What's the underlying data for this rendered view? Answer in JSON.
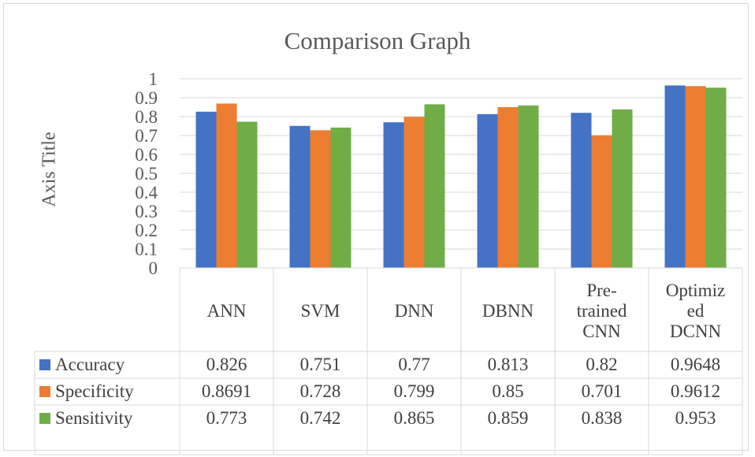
{
  "colors": {
    "accuracy": "#4472C4",
    "specificity": "#ED7D31",
    "sensitivity": "#70AD47",
    "grid": "#d9d9d9",
    "text": "#595959"
  },
  "chart_data": {
    "type": "bar",
    "title": "Comparison Graph",
    "ylabel": "Axis Title",
    "xlabel": "",
    "ylim": [
      0,
      1
    ],
    "yticks": [
      "0",
      "0.1",
      "0.2",
      "0.3",
      "0.4",
      "0.5",
      "0.6",
      "0.7",
      "0.8",
      "0.9",
      "1"
    ],
    "grid": true,
    "legend": "data-table",
    "categories": [
      "ANN",
      "SVM",
      "DNN",
      "DBNN",
      "Pre-trained CNN",
      "Optimized DCNN"
    ],
    "category_lines": [
      [
        "ANN"
      ],
      [
        "SVM"
      ],
      [
        "DNN"
      ],
      [
        "DBNN"
      ],
      [
        "Pre-",
        "trained",
        "CNN"
      ],
      [
        "Optimiz",
        "ed",
        "DCNN"
      ]
    ],
    "series": [
      {
        "name": "Accuracy",
        "values": [
          0.826,
          0.751,
          0.77,
          0.813,
          0.82,
          0.9648
        ]
      },
      {
        "name": "Specificity",
        "values": [
          0.8691,
          0.728,
          0.799,
          0.85,
          0.701,
          0.9612
        ]
      },
      {
        "name": "Sensitivity",
        "values": [
          0.773,
          0.742,
          0.865,
          0.859,
          0.838,
          0.953
        ]
      }
    ],
    "table_values": [
      [
        "0.826",
        "0.751",
        "0.77",
        "0.813",
        "0.82",
        "0.9648"
      ],
      [
        "0.8691",
        "0.728",
        "0.799",
        "0.85",
        "0.701",
        "0.9612"
      ],
      [
        "0.773",
        "0.742",
        "0.865",
        "0.859",
        "0.838",
        "0.953"
      ]
    ]
  }
}
